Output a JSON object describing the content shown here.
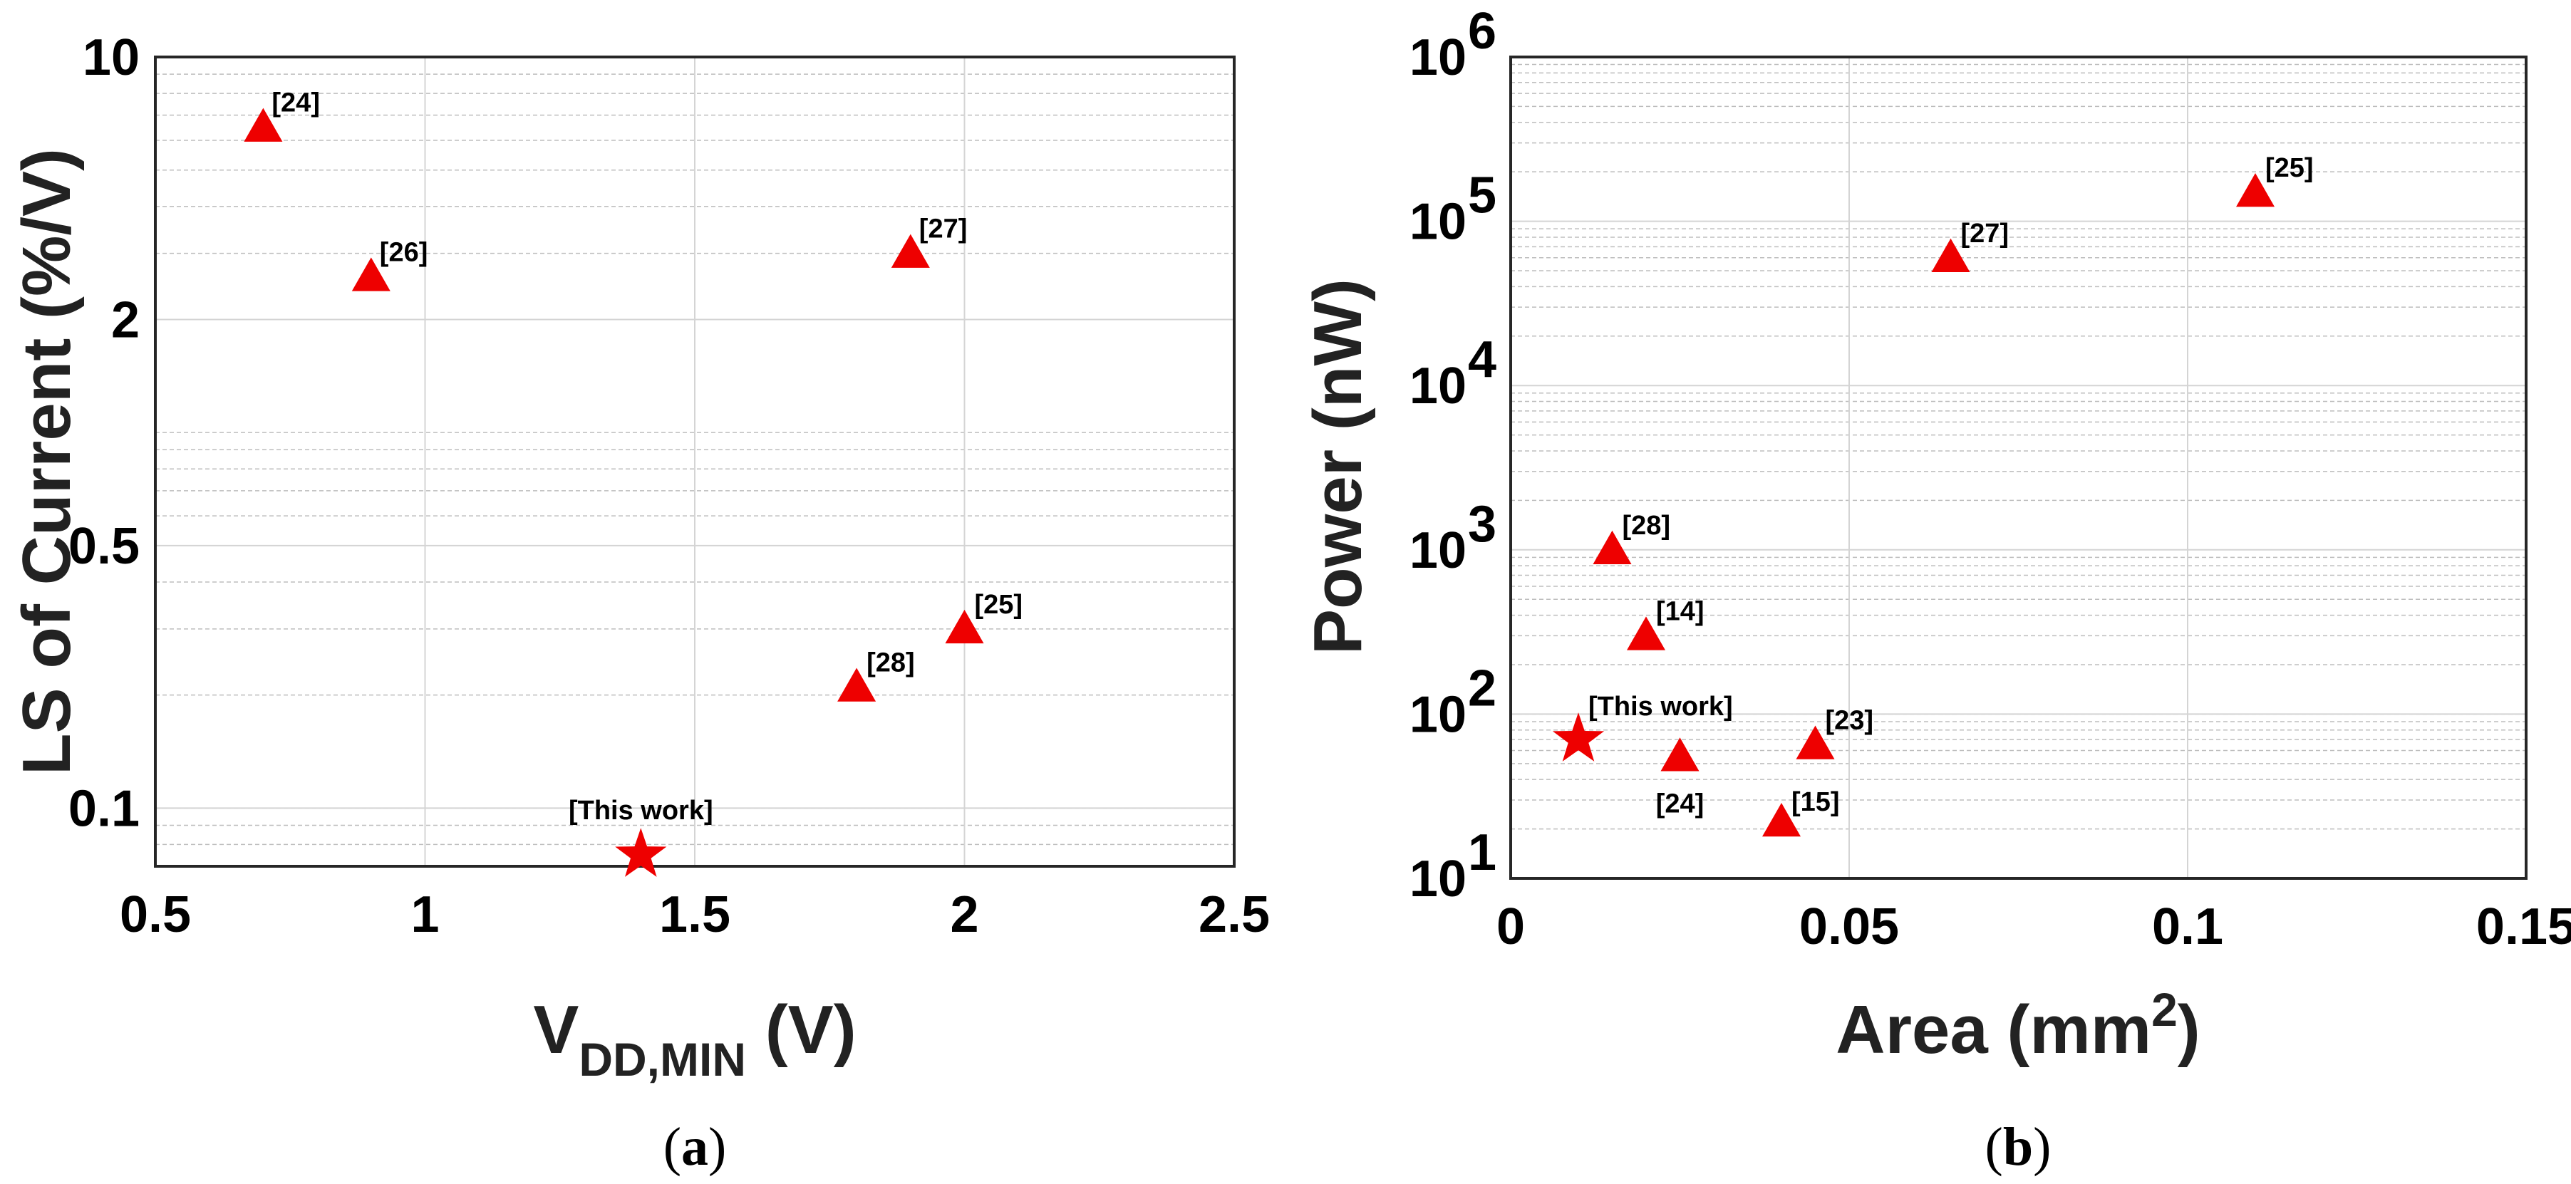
{
  "chart_data": [
    {
      "type": "scatter",
      "panel": "a",
      "caption_letter": "a",
      "xlabel_main": "V",
      "xlabel_sub": "DD,MIN",
      "xlabel_unit": " (V)",
      "ylabel": "LS of Current (%/V)",
      "xlim": [
        0.5,
        2.5
      ],
      "ylim": [
        0.07,
        10
      ],
      "yscale": "log",
      "xticks": [
        0.5,
        1,
        1.5,
        2,
        2.5
      ],
      "xtick_labels": [
        "0.5",
        "1",
        "1.5",
        "2",
        "2.5"
      ],
      "yticks": [
        0.1,
        0.5,
        2,
        10
      ],
      "ytick_labels": [
        "0.1",
        "0.5",
        "2",
        "10"
      ],
      "grid": true,
      "points": [
        {
          "label": "[24]",
          "x": 0.7,
          "y": 6.5,
          "marker": "triangle"
        },
        {
          "label": "[26]",
          "x": 0.9,
          "y": 2.6,
          "marker": "triangle"
        },
        {
          "label": "[27]",
          "x": 1.9,
          "y": 3.0,
          "marker": "triangle"
        },
        {
          "label": "[25]",
          "x": 2.0,
          "y": 0.3,
          "marker": "triangle"
        },
        {
          "label": "[28]",
          "x": 1.8,
          "y": 0.21,
          "marker": "triangle"
        },
        {
          "label": "[This work]",
          "x": 1.4,
          "y": 0.075,
          "marker": "star"
        }
      ]
    },
    {
      "type": "scatter",
      "panel": "b",
      "caption_letter": "b",
      "xlabel_main": "Area (mm",
      "xlabel_sup": "2",
      "xlabel_end": ")",
      "ylabel": "Power (nW)",
      "xlim": [
        0,
        0.15
      ],
      "ylim": [
        10,
        1000000
      ],
      "yscale": "log",
      "xticks": [
        0,
        0.05,
        0.1,
        0.15
      ],
      "xtick_labels": [
        "0",
        "0.05",
        "0.1",
        "0.15"
      ],
      "yticks": [
        10,
        100,
        1000,
        10000,
        100000,
        1000000
      ],
      "ytick_exponents": [
        "1",
        "2",
        "3",
        "4",
        "5",
        "6"
      ],
      "ytick_base": "10",
      "grid": true,
      "points": [
        {
          "label": "[25]",
          "x": 0.11,
          "y": 150000,
          "marker": "triangle"
        },
        {
          "label": "[27]",
          "x": 0.065,
          "y": 60000,
          "marker": "triangle"
        },
        {
          "label": "[28]",
          "x": 0.015,
          "y": 1000,
          "marker": "triangle"
        },
        {
          "label": "[14]",
          "x": 0.02,
          "y": 300,
          "marker": "triangle"
        },
        {
          "label": "[23]",
          "x": 0.045,
          "y": 65,
          "marker": "triangle"
        },
        {
          "label": "[24]",
          "x": 0.025,
          "y": 55,
          "marker": "triangle"
        },
        {
          "label": "[15]",
          "x": 0.04,
          "y": 22,
          "marker": "triangle"
        },
        {
          "label": "[This work]",
          "x": 0.01,
          "y": 70,
          "marker": "star"
        }
      ]
    }
  ]
}
